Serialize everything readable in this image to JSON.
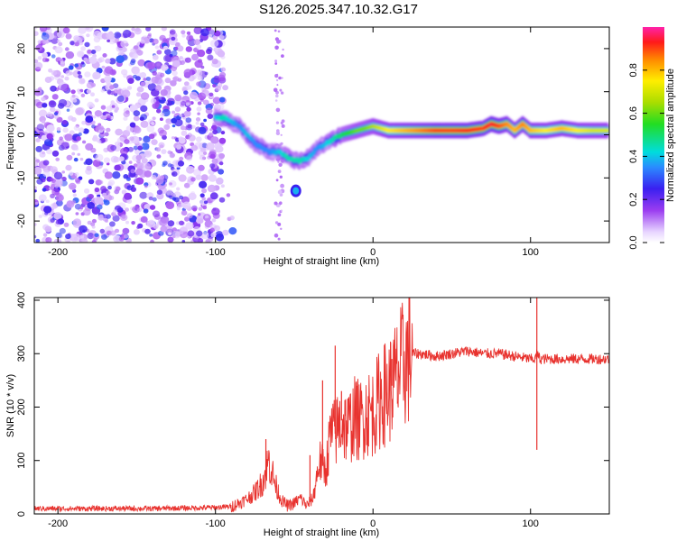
{
  "title": "S126.2025.347.10.32.G17",
  "chart_data": [
    {
      "type": "heatmap",
      "title": "S126.2025.347.10.32.G17",
      "xlabel": "Height of straight line (km)",
      "ylabel": "Frequency (Hz)",
      "xlim": [
        -215,
        150
      ],
      "ylim": [
        -25,
        25
      ],
      "xticks": [
        "-200",
        "-100",
        "0",
        "100"
      ],
      "xtick_values": [
        -200,
        -100,
        0,
        100
      ],
      "yticks": [
        "20",
        "10",
        "0",
        "-10",
        "-20"
      ],
      "ytick_values": [
        20,
        10,
        0,
        -10,
        -20
      ],
      "noise_region_x": [
        -215,
        -95
      ],
      "ridge": {
        "x": [
          -100,
          -95,
          -90,
          -85,
          -80,
          -75,
          -70,
          -65,
          -60,
          -55,
          -50,
          -45,
          -40,
          -35,
          -30,
          -25,
          -20,
          -15,
          -10,
          -5,
          0,
          5,
          10,
          20,
          30,
          40,
          50,
          60,
          70,
          75,
          80,
          85,
          90,
          95,
          100,
          110,
          120,
          130,
          140,
          150
        ],
        "y": [
          4,
          4,
          3,
          2,
          0,
          -2,
          -3,
          -4,
          -4,
          -5,
          -6,
          -6,
          -5,
          -3,
          -2,
          -1,
          0,
          0.5,
          1,
          1.5,
          2,
          1.5,
          1,
          1,
          1,
          1,
          1,
          1,
          1.5,
          2.5,
          2,
          2.5,
          1,
          2.5,
          1,
          1,
          1.5,
          1,
          1,
          1
        ],
        "amplitude": [
          0.4,
          0.45,
          0.4,
          0.35,
          0.4,
          0.35,
          0.35,
          0.35,
          0.4,
          0.45,
          0.45,
          0.45,
          0.4,
          0.35,
          0.4,
          0.45,
          0.5,
          0.55,
          0.6,
          0.6,
          0.65,
          0.7,
          0.75,
          0.8,
          0.85,
          0.9,
          0.9,
          0.92,
          0.9,
          0.95,
          0.9,
          0.85,
          0.8,
          0.85,
          0.8,
          0.75,
          0.8,
          0.75,
          0.7,
          0.7
        ]
      },
      "blob": {
        "x": -49,
        "y": -13
      },
      "colorbar": {
        "label": "Normalized spectral amplitude",
        "ticks": [
          "0.0",
          "0.2",
          "0.4",
          "0.6",
          "0.8"
        ],
        "tick_values": [
          0,
          0.2,
          0.4,
          0.6,
          0.8
        ],
        "range": [
          0,
          1
        ]
      }
    },
    {
      "type": "line",
      "xlabel": "Height of straight line (km)",
      "ylabel": "SNR (10 * v/v)",
      "xlim": [
        -215,
        150
      ],
      "ylim": [
        0,
        405
      ],
      "xticks": [
        "-200",
        "-100",
        "0",
        "100"
      ],
      "xtick_values": [
        -200,
        -100,
        0,
        100
      ],
      "yticks": [
        "0",
        "100",
        "200",
        "300",
        "400"
      ],
      "ytick_values": [
        0,
        100,
        200,
        300,
        400
      ],
      "color": "#e8322e",
      "series": [
        {
          "name": "SNR",
          "x": [
            -215,
            -180,
            -140,
            -100,
            -90,
            -85,
            -80,
            -75,
            -70,
            -66,
            -62,
            -58,
            -54,
            -50,
            -46,
            -42,
            -38,
            -34,
            -30,
            -27,
            -24,
            -20,
            -16,
            -12,
            -8,
            -4,
            0,
            5,
            10,
            15,
            20,
            25,
            30,
            40,
            50,
            60,
            70,
            80,
            90,
            100,
            103,
            104,
            106,
            110,
            120,
            130,
            140,
            150
          ],
          "y": [
            10,
            10,
            10,
            12,
            14,
            20,
            28,
            40,
            60,
            100,
            55,
            25,
            15,
            20,
            30,
            15,
            30,
            100,
            80,
            150,
            150,
            175,
            160,
            180,
            175,
            190,
            190,
            220,
            230,
            255,
            285,
            300,
            300,
            295,
            300,
            305,
            300,
            300,
            295,
            290,
            290,
            300,
            290,
            290,
            290,
            290,
            290,
            290
          ]
        }
      ],
      "spikes": [
        {
          "x": -68,
          "y": 140
        },
        {
          "x": -40,
          "y": 110
        },
        {
          "x": -32,
          "y": 250
        },
        {
          "x": -24,
          "y": 315
        },
        {
          "x": -20,
          "y": 230
        },
        {
          "x": -10,
          "y": 240
        },
        {
          "x": 12,
          "y": 290
        },
        {
          "x": 104,
          "y": 405
        },
        {
          "x": 104,
          "y": 120
        }
      ]
    }
  ]
}
